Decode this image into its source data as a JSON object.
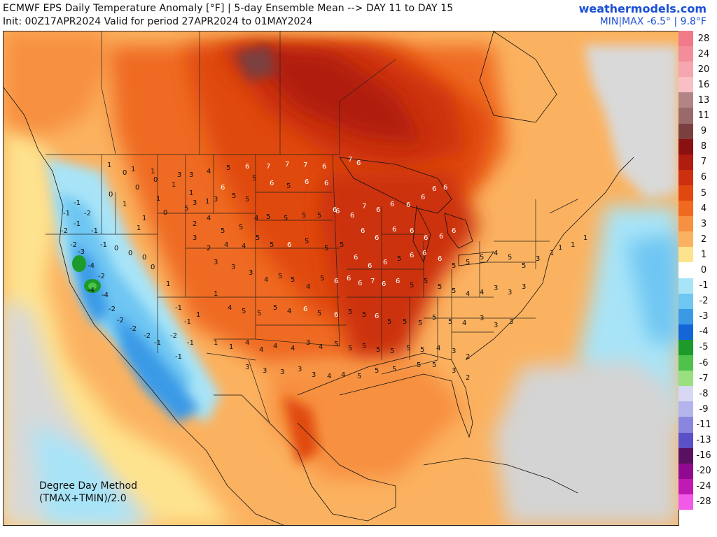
{
  "header": {
    "title_line1": "ECMWF EPS Daily Temperature Anomaly [°F] | 5-day Ensemble Mean --> DAY 11 to DAY 15",
    "title_line2": "Init: 00Z17APR2024 Valid for period 27APR2024 to 01MAY2024",
    "site": "weathermodels.com",
    "minmax": "MIN|MAX -6.5° | 9.8°F"
  },
  "method": {
    "line1": "Degree Day Method",
    "line2": "(TMAX+TMIN)/2.0"
  },
  "legend": {
    "levels": [
      {
        "label": "28",
        "color": "#f07a88"
      },
      {
        "label": "24",
        "color": "#f28e99"
      },
      {
        "label": "20",
        "color": "#f5a6ae"
      },
      {
        "label": "16",
        "color": "#f8bfc4"
      },
      {
        "label": "13",
        "color": "#b28585"
      },
      {
        "label": "11",
        "color": "#9a6a6a"
      },
      {
        "label": "9",
        "color": "#7a4040"
      },
      {
        "label": "8",
        "color": "#8b1010"
      },
      {
        "label": "7",
        "color": "#b01c10"
      },
      {
        "label": "6",
        "color": "#cc3010"
      },
      {
        "label": "5",
        "color": "#e04810"
      },
      {
        "label": "4",
        "color": "#ef6a20"
      },
      {
        "label": "3",
        "color": "#f79040"
      },
      {
        "label": "2",
        "color": "#fbb260"
      },
      {
        "label": "1",
        "color": "#fee38e"
      },
      {
        "label": "0",
        "color": "#ffffff"
      },
      {
        "label": "-1",
        "color": "#a8e4f8"
      },
      {
        "label": "-2",
        "color": "#6ec6f2"
      },
      {
        "label": "-3",
        "color": "#3b9ae6"
      },
      {
        "label": "-4",
        "color": "#1466d8"
      },
      {
        "label": "-5",
        "color": "#1c9a2a"
      },
      {
        "label": "-6",
        "color": "#4ec24a"
      },
      {
        "label": "-7",
        "color": "#98e080"
      },
      {
        "label": "-8",
        "color": "#d8d8f4"
      },
      {
        "label": "-9",
        "color": "#b4b4ec"
      },
      {
        "label": "-11",
        "color": "#8a86e0"
      },
      {
        "label": "-13",
        "color": "#5a50c8"
      },
      {
        "label": "-16",
        "color": "#5a1060"
      },
      {
        "label": "-20",
        "color": "#900a90"
      },
      {
        "label": "-24",
        "color": "#c01ab4"
      },
      {
        "label": "-28",
        "color": "#f05ae6"
      }
    ]
  },
  "map": {
    "station_values": [
      {
        "v": "1"
      },
      {
        "v": "0"
      },
      {
        "v": "1"
      },
      {
        "v": "2"
      },
      {
        "v": "3"
      },
      {
        "v": "4"
      },
      {
        "v": "5"
      },
      {
        "v": "6"
      },
      {
        "v": "7"
      },
      {
        "v": "-1"
      },
      {
        "v": "-2"
      },
      {
        "v": "-3"
      },
      {
        "v": "-4"
      }
    ]
  }
}
